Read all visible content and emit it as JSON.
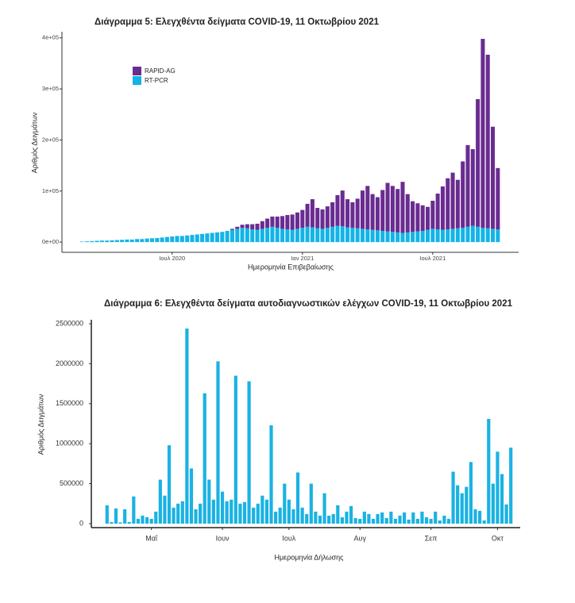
{
  "chart_data": [
    {
      "type": "stacked-bar",
      "title": "Διάγραμμα 5: Ελεγχθέντα δείγματα COVID-19, 11 Οκτωβρίου 2021",
      "x_label": "Ημερομηνία Επιβεβαίωσης",
      "y_label": "Αριθμός Δειγμάτων",
      "legend": "top-left",
      "categories": [
        null,
        null,
        null,
        null,
        null,
        null,
        null,
        null,
        null,
        null,
        null,
        null,
        null,
        null,
        null,
        null,
        null,
        null,
        "Ιουλ 2020",
        null,
        null,
        null,
        null,
        null,
        null,
        null,
        null,
        null,
        null,
        null,
        null,
        null,
        null,
        null,
        null,
        null,
        null,
        null,
        null,
        null,
        null,
        null,
        null,
        null,
        "Ιαν 2021",
        null,
        null,
        null,
        null,
        null,
        null,
        null,
        null,
        null,
        null,
        null,
        null,
        null,
        null,
        null,
        null,
        null,
        null,
        null,
        null,
        null,
        null,
        null,
        null,
        null,
        "Ιουλ 2021",
        null,
        null,
        null,
        null,
        null,
        null,
        null,
        null,
        null,
        null,
        null,
        null,
        null
      ],
      "series": [
        {
          "name": "RT-PCR",
          "color": "#14b4e6",
          "values": [
            1000,
            1500,
            2000,
            2500,
            3000,
            3000,
            3500,
            4000,
            4500,
            5000,
            5000,
            6000,
            6000,
            7000,
            7500,
            8000,
            9000,
            10000,
            11000,
            12000,
            12000,
            13000,
            14000,
            15000,
            16000,
            17000,
            18000,
            19000,
            20000,
            22000,
            24000,
            26000,
            28000,
            27000,
            25000,
            24000,
            26000,
            28000,
            30000,
            28000,
            26000,
            25000,
            24000,
            26000,
            28000,
            30000,
            29000,
            27000,
            26000,
            28000,
            30000,
            32000,
            31000,
            29000,
            28000,
            27000,
            26000,
            25000,
            24000,
            23000,
            22000,
            21000,
            20000,
            19000,
            18000,
            19000,
            20000,
            21000,
            22000,
            24000,
            26000,
            25000,
            24000,
            25000,
            26000,
            27000,
            28000,
            30000,
            32000,
            30000,
            28000,
            27000,
            26000,
            25000
          ]
        },
        {
          "name": "RAPID-AG",
          "color": "#6a2c91",
          "values": [
            0,
            0,
            0,
            0,
            0,
            0,
            0,
            0,
            0,
            0,
            0,
            0,
            0,
            0,
            0,
            0,
            0,
            0,
            0,
            0,
            0,
            0,
            0,
            0,
            0,
            0,
            0,
            0,
            0,
            0,
            2000,
            4000,
            6000,
            8000,
            10000,
            12000,
            15000,
            18000,
            20000,
            22000,
            25000,
            28000,
            30000,
            32000,
            35000,
            45000,
            55000,
            40000,
            38000,
            42000,
            48000,
            60000,
            70000,
            55000,
            50000,
            58000,
            75000,
            85000,
            70000,
            65000,
            80000,
            95000,
            90000,
            85000,
            100000,
            75000,
            60000,
            55000,
            50000,
            45000,
            55000,
            70000,
            85000,
            100000,
            110000,
            95000,
            130000,
            160000,
            150000,
            250000,
            370000,
            340000,
            200000,
            120000
          ]
        }
      ],
      "ylim": [
        -20000,
        412000
      ],
      "yticks": [
        {
          "value": 0,
          "label": "0e+00"
        },
        {
          "value": 100000,
          "label": "1e+05"
        },
        {
          "value": 200000,
          "label": "2e+05"
        },
        {
          "value": 300000,
          "label": "3e+05"
        },
        {
          "value": 400000,
          "label": "4e+05"
        }
      ]
    },
    {
      "type": "bar",
      "title": "Διάγραμμα 6: Ελεγχθέντα δείγματα αυτοδιαγνωστικών ελέγχων COVID-19, 11 Οκτωβρίου 2021",
      "x_label": "Ημερομηνία Δήλωσης",
      "y_label": "Αριθμός Δειγμάτων",
      "color": "#1ab2e3",
      "categories": [
        null,
        null,
        null,
        null,
        null,
        null,
        null,
        null,
        null,
        null,
        "Μαΐ",
        null,
        null,
        null,
        null,
        null,
        null,
        null,
        null,
        null,
        null,
        null,
        null,
        null,
        null,
        null,
        "Ιουν",
        null,
        null,
        null,
        null,
        null,
        null,
        null,
        null,
        null,
        null,
        null,
        null,
        null,
        null,
        "Ιουλ",
        null,
        null,
        null,
        null,
        null,
        null,
        null,
        null,
        null,
        null,
        null,
        null,
        null,
        null,
        null,
        "Αυγ",
        null,
        null,
        null,
        null,
        null,
        null,
        null,
        null,
        null,
        null,
        null,
        null,
        null,
        null,
        null,
        "Σεπ",
        null,
        null,
        null,
        null,
        null,
        null,
        null,
        null,
        null,
        null,
        null,
        null,
        null,
        null,
        "Οκτ",
        null,
        null,
        null
      ],
      "values": [
        230000,
        20000,
        190000,
        15000,
        180000,
        20000,
        340000,
        60000,
        100000,
        80000,
        60000,
        150000,
        550000,
        350000,
        980000,
        200000,
        250000,
        280000,
        2440000,
        690000,
        180000,
        250000,
        1630000,
        550000,
        300000,
        2030000,
        400000,
        280000,
        300000,
        1850000,
        250000,
        270000,
        1780000,
        200000,
        250000,
        350000,
        300000,
        1230000,
        150000,
        200000,
        500000,
        300000,
        180000,
        640000,
        200000,
        120000,
        500000,
        150000,
        100000,
        380000,
        100000,
        120000,
        230000,
        80000,
        150000,
        220000,
        70000,
        60000,
        150000,
        120000,
        60000,
        120000,
        140000,
        70000,
        150000,
        60000,
        100000,
        140000,
        50000,
        140000,
        60000,
        150000,
        80000,
        60000,
        150000,
        40000,
        100000,
        60000,
        650000,
        480000,
        380000,
        460000,
        770000,
        180000,
        160000,
        40000,
        1310000,
        500000,
        900000,
        620000,
        240000,
        950000
      ],
      "ylim": [
        -50000,
        2550000
      ],
      "yticks": [
        0,
        500000,
        1000000,
        1500000,
        2000000,
        2500000
      ]
    }
  ]
}
